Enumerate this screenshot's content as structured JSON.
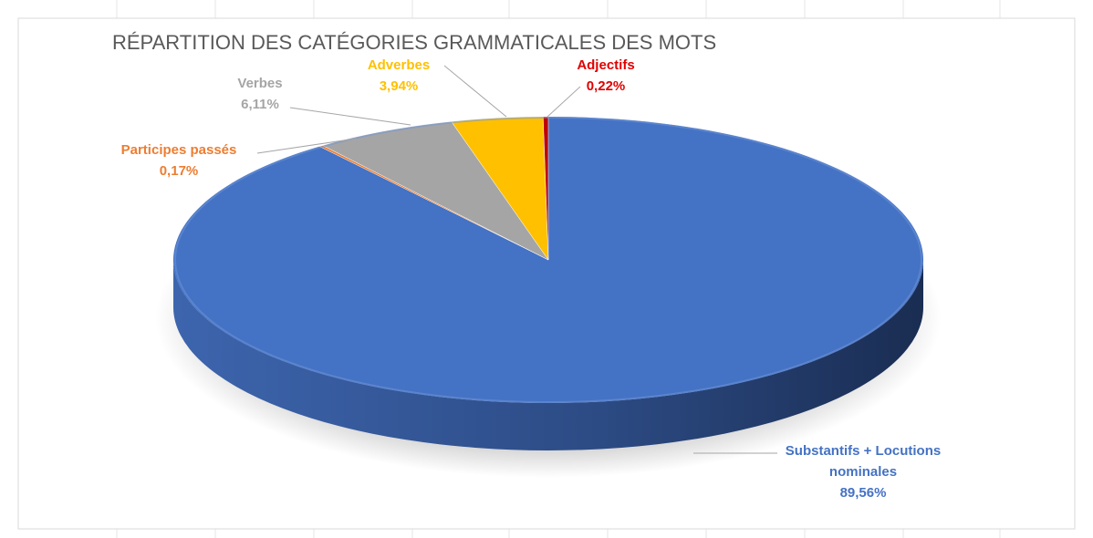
{
  "chart_data": {
    "type": "pie",
    "title": "RÉPARTITION DES CATÉGORIES GRAMMATICALES DES MOTS",
    "categories": [
      "Substantifs + Locutions nominales",
      "Participes passés",
      "Verbes",
      "Adverbes",
      "Adjectifs"
    ],
    "values": [
      89.56,
      0.17,
      6.11,
      3.94,
      0.22
    ],
    "value_labels": [
      "89,56%",
      "0,17%",
      "6,11%",
      "3,94%",
      "0,22%"
    ],
    "colors": [
      "#4472c4",
      "#ed7d31",
      "#a5a5a5",
      "#ffc000",
      "#c00000"
    ],
    "label_colors": [
      "#4472c4",
      "#ed7d31",
      "#a5a5a5",
      "#ffc000",
      "#e00000"
    ]
  }
}
